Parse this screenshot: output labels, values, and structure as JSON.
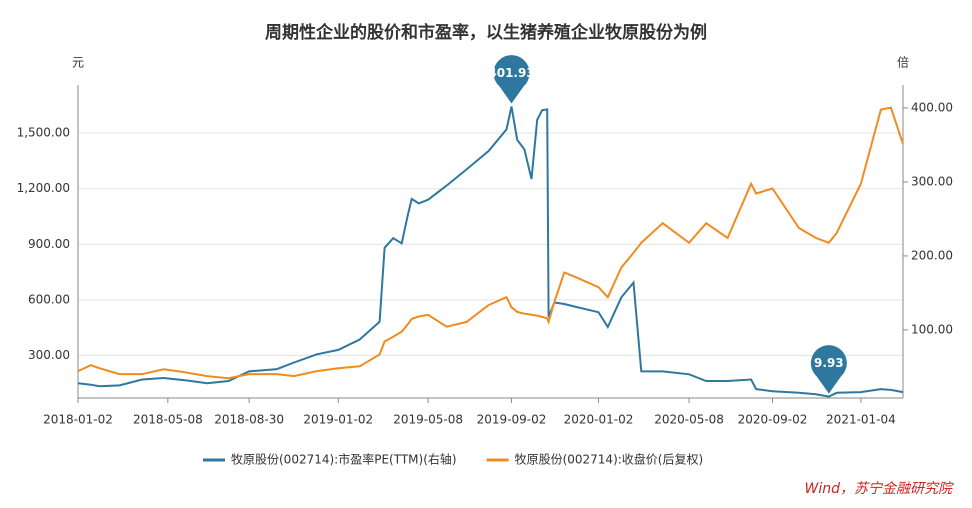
{
  "chart_data": {
    "type": "line",
    "title": "周期性企业的股价和市盈率，以生猪养殖企业牧原股份为例",
    "y_unit": "元",
    "y2_unit": "倍",
    "source": "Wind，苏宁金融研究院",
    "x": [
      "2018-01-02",
      "2018-01-20",
      "2018-02-01",
      "2018-03-01",
      "2018-04-02",
      "2018-05-02",
      "2018-06-01",
      "2018-07-02",
      "2018-08-01",
      "2018-08-30",
      "2018-10-08",
      "2018-11-01",
      "2018-12-03",
      "2019-01-02",
      "2019-02-01",
      "2019-03-01",
      "2019-03-08",
      "2019-03-20",
      "2019-04-01",
      "2019-04-10",
      "2019-04-15",
      "2019-04-25",
      "2019-05-08",
      "2019-06-03",
      "2019-07-01",
      "2019-08-01",
      "2019-08-26",
      "2019-09-02",
      "2019-09-10",
      "2019-09-20",
      "2019-09-30",
      "2019-10-08",
      "2019-10-15",
      "2019-10-22",
      "2019-10-24",
      "2019-11-01",
      "2019-11-15",
      "2019-12-02",
      "2020-01-02",
      "2020-01-15",
      "2020-02-03",
      "2020-02-20",
      "2020-03-02",
      "2020-04-01",
      "2020-05-08",
      "2020-06-01",
      "2020-07-01",
      "2020-08-03",
      "2020-08-10",
      "2020-09-02",
      "2020-10-09",
      "2020-11-02",
      "2020-11-20",
      "2020-12-01",
      "2021-01-04",
      "2021-02-01",
      "2021-02-15",
      "2021-03-04"
    ],
    "series": [
      {
        "name": "牧原股份(002714):市盈率PE(TTM)(右轴)",
        "color": "#2e78a0",
        "axis": "y2",
        "values": [
          28,
          26,
          24,
          25,
          33,
          35,
          32,
          28,
          31,
          44,
          47,
          56,
          67,
          73,
          87,
          111,
          211,
          224,
          217,
          257,
          277,
          271,
          276,
          295,
          317,
          342,
          371,
          401.93,
          357,
          344,
          304,
          384,
          397,
          398,
          117,
          137,
          135,
          131,
          124,
          104,
          144,
          164,
          44,
          44,
          40,
          31,
          31,
          33,
          20,
          17,
          15,
          13,
          9.93,
          15,
          16,
          20,
          19,
          16
        ]
      },
      {
        "name": "牧原股份(002714):收盘价(后复权)",
        "color": "#f08c1e",
        "values": [
          215,
          247,
          231,
          199,
          199,
          225,
          209,
          188,
          177,
          199,
          199,
          188,
          215,
          231,
          241,
          305,
          375,
          401,
          428,
          470,
          497,
          510,
          519,
          455,
          481,
          572,
          614,
          560,
          535,
          525,
          519,
          515,
          508,
          500,
          481,
          588,
          748,
          721,
          668,
          614,
          774,
          854,
          908,
          1014,
          908,
          1014,
          934,
          1227,
          1174,
          1201,
          988,
          934,
          908,
          961,
          1227,
          1627,
          1638,
          1441
        ]
      }
    ],
    "xlim": [
      "2018-01-02",
      "2021-03-04"
    ],
    "xticks": [
      "2018-01-02",
      "2018-05-08",
      "2018-08-30",
      "2019-01-02",
      "2019-05-08",
      "2019-09-02",
      "2020-01-02",
      "2020-05-08",
      "2020-09-02",
      "2021-01-04"
    ],
    "ylim": [
      70,
      1760
    ],
    "yticks": [
      {
        "value": 300,
        "label": "300.00"
      },
      {
        "value": 600,
        "label": "600.00"
      },
      {
        "value": 900,
        "label": "900.00"
      },
      {
        "value": 1200,
        "label": "1,200.00"
      },
      {
        "value": 1500,
        "label": "1,500.00"
      }
    ],
    "y2lim": [
      8,
      431
    ],
    "y2ticks": [
      {
        "value": 100,
        "label": "100.00"
      },
      {
        "value": 200,
        "label": "200.00"
      },
      {
        "value": 300,
        "label": "300.00"
      },
      {
        "value": 400,
        "label": "400.00"
      }
    ],
    "grid": true,
    "legend": "bottom"
  }
}
